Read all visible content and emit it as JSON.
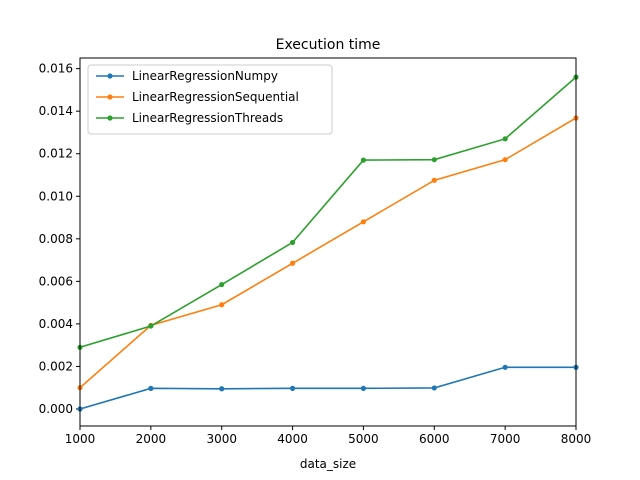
{
  "chart_data": {
    "type": "line",
    "title": "Execution time",
    "xlabel": "data_size",
    "ylabel": "",
    "xlim": [
      1000,
      8000
    ],
    "ylim": [
      -0.0008,
      0.0165
    ],
    "x": [
      1000,
      2000,
      3000,
      4000,
      5000,
      6000,
      7000,
      8000
    ],
    "xticks": [
      "1000",
      "2000",
      "3000",
      "4000",
      "5000",
      "6000",
      "7000",
      "8000"
    ],
    "yticks": [
      "0.000",
      "0.002",
      "0.004",
      "0.006",
      "0.008",
      "0.010",
      "0.012",
      "0.014",
      "0.016"
    ],
    "grid": false,
    "legend_position": "top-left",
    "series": [
      {
        "name": "LinearRegressionNumpy",
        "color": "#1f77b4",
        "values": [
          0.0,
          0.00097,
          0.00095,
          0.00097,
          0.00097,
          0.00099,
          0.00196,
          0.00196
        ]
      },
      {
        "name": "LinearRegressionSequential",
        "color": "#ff7f0e",
        "values": [
          0.001,
          0.00393,
          0.0049,
          0.00685,
          0.0088,
          0.01075,
          0.01172,
          0.01368
        ]
      },
      {
        "name": "LinearRegressionThreads",
        "color": "#2ca02c",
        "values": [
          0.0029,
          0.0039,
          0.00585,
          0.00783,
          0.0117,
          0.01172,
          0.0127,
          0.0156
        ]
      }
    ]
  }
}
